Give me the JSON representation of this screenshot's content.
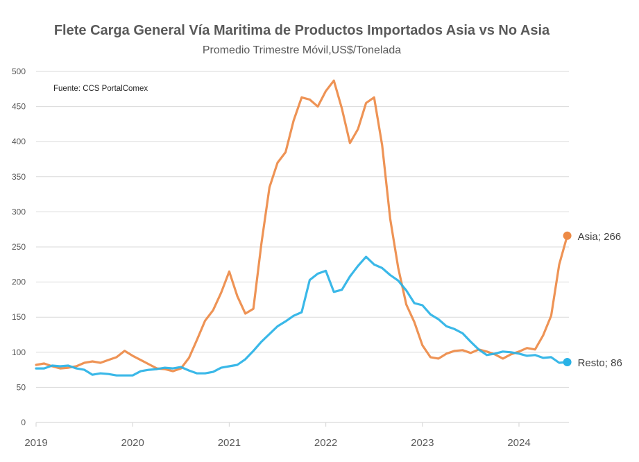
{
  "chart_data": {
    "type": "line",
    "title": "Flete Carga General Vía Maritima de Productos Importados Asia vs No Asia",
    "subtitle": "Promedio Trimestre Móvil,US$/Tonelada",
    "source_note": "Fuente: CCS PortalComex",
    "xlabel": "",
    "ylabel": "",
    "ylim": [
      0,
      500
    ],
    "yticks": [
      0,
      50,
      100,
      150,
      200,
      250,
      300,
      350,
      400,
      450,
      500
    ],
    "xticks": [
      "2019",
      "2020",
      "2021",
      "2022",
      "2023",
      "2024"
    ],
    "x_start": "2019-01",
    "x_frequency": "monthly",
    "grid": true,
    "legend": "none (end-of-line labels)",
    "series": [
      {
        "name": "Asia",
        "color": "#ED8A46",
        "end_label": "Asia; 266",
        "values": [
          82,
          84,
          80,
          77,
          78,
          80,
          85,
          87,
          85,
          89,
          93,
          102,
          95,
          89,
          83,
          77,
          76,
          73,
          77,
          92,
          118,
          145,
          160,
          185,
          215,
          180,
          155,
          162,
          255,
          335,
          370,
          385,
          430,
          463,
          460,
          450,
          472,
          487,
          447,
          398,
          418,
          455,
          463,
          395,
          290,
          220,
          168,
          143,
          110,
          93,
          91,
          98,
          102,
          103,
          99,
          104,
          101,
          97,
          91,
          97,
          101,
          106,
          104,
          124,
          152,
          225,
          266
        ]
      },
      {
        "name": "Resto",
        "color": "#29B2E6",
        "end_label": "Resto; 86",
        "values": [
          77,
          77,
          81,
          80,
          81,
          77,
          75,
          68,
          70,
          69,
          67,
          67,
          67,
          73,
          75,
          76,
          78,
          77,
          79,
          74,
          70,
          70,
          72,
          78,
          80,
          82,
          90,
          102,
          115,
          126,
          137,
          144,
          152,
          157,
          203,
          212,
          216,
          186,
          189,
          208,
          223,
          236,
          225,
          220,
          210,
          202,
          188,
          170,
          167,
          154,
          147,
          137,
          133,
          127,
          115,
          104,
          96,
          98,
          101,
          100,
          98,
          95,
          96,
          92,
          93,
          85,
          86
        ]
      }
    ]
  }
}
